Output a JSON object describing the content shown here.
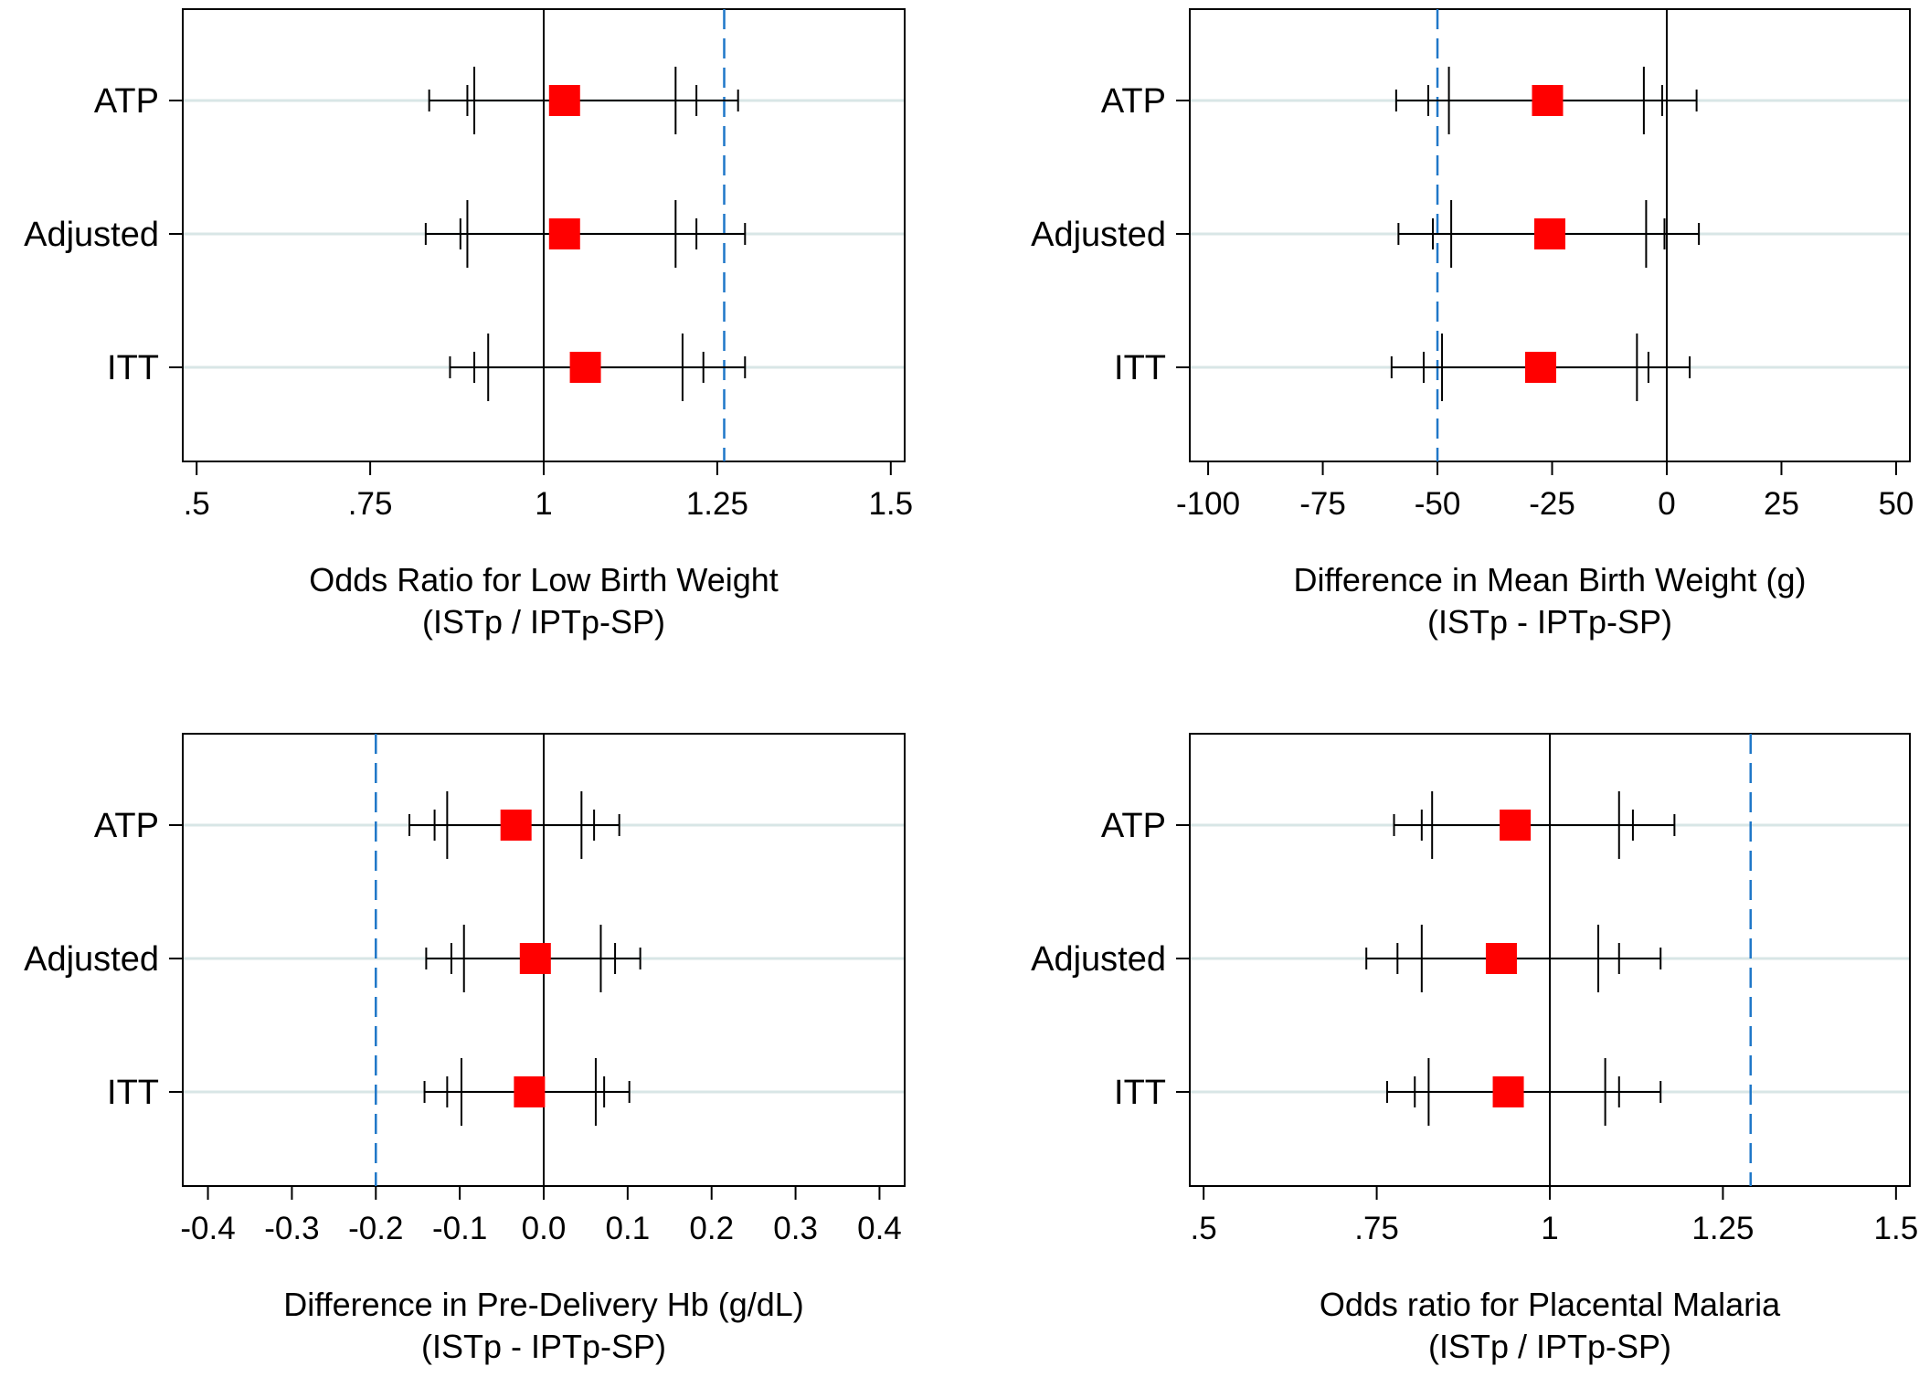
{
  "colors": {
    "marker": "#ff0000",
    "reference_line": "#1f77c8",
    "grid": "#d8e6e6",
    "ci_line": "#000000",
    "frame": "#000000"
  },
  "chart_data": [
    {
      "type": "forest",
      "xlabel": "Odds Ratio for Low Birth Weight",
      "xlabel_sub": "(ISTp / IPTp-SP)",
      "xlim": [
        0.48,
        1.52
      ],
      "ticks": [
        0.5,
        0.75,
        1,
        1.25,
        1.5
      ],
      "tick_labels": [
        ".5",
        ".75",
        "1",
        "1.25",
        "1.5"
      ],
      "null_line": 1,
      "margin_line": 1.26,
      "categories": [
        "ATP",
        "Adjusted",
        "ITT"
      ],
      "points": [
        {
          "label": "ATP",
          "estimate": 1.03,
          "ci90": [
            0.89,
            1.22
          ],
          "ci95": [
            0.835,
            1.28
          ],
          "ci85": [
            0.9,
            1.19
          ]
        },
        {
          "label": "Adjusted",
          "estimate": 1.03,
          "ci90": [
            0.88,
            1.22
          ],
          "ci95": [
            0.83,
            1.29
          ],
          "ci85": [
            0.89,
            1.19
          ]
        },
        {
          "label": "ITT",
          "estimate": 1.06,
          "ci90": [
            0.9,
            1.23
          ],
          "ci95": [
            0.865,
            1.29
          ],
          "ci85": [
            0.92,
            1.2
          ]
        }
      ]
    },
    {
      "type": "forest",
      "xlabel": "Difference in Mean Birth Weight (g)",
      "xlabel_sub": "(ISTp - IPTp-SP)",
      "xlim": [
        -104,
        53
      ],
      "ticks": [
        -100,
        -75,
        -50,
        -25,
        0,
        25,
        50
      ],
      "tick_labels": [
        "-100",
        "-75",
        "-50",
        "-25",
        "0",
        "25",
        "50"
      ],
      "null_line": 0,
      "margin_line": -50,
      "categories": [
        "ATP",
        "Adjusted",
        "ITT"
      ],
      "points": [
        {
          "label": "ATP",
          "estimate": -26,
          "ci90": [
            -52,
            -1
          ],
          "ci95": [
            -59,
            6.5
          ],
          "ci85": [
            -47.5,
            -5
          ]
        },
        {
          "label": "Adjusted",
          "estimate": -25.5,
          "ci90": [
            -51,
            -0.5
          ],
          "ci95": [
            -58.5,
            7
          ],
          "ci85": [
            -47,
            -4.5
          ]
        },
        {
          "label": "ITT",
          "estimate": -27.5,
          "ci90": [
            -53,
            -4
          ],
          "ci95": [
            -60,
            5
          ],
          "ci85": [
            -49,
            -6.5
          ]
        }
      ]
    },
    {
      "type": "forest",
      "xlabel": "Difference in Pre-Delivery Hb (g/dL)",
      "xlabel_sub": "(ISTp - IPTp-SP)",
      "xlim": [
        -0.43,
        0.43
      ],
      "ticks": [
        -0.4,
        -0.3,
        -0.2,
        -0.1,
        0.0,
        0.1,
        0.2,
        0.3,
        0.4
      ],
      "tick_labels": [
        "-0.4",
        "-0.3",
        "-0.2",
        "-0.1",
        "0.0",
        "0.1",
        "0.2",
        "0.3",
        "0.4"
      ],
      "null_line": 0,
      "margin_line": -0.2,
      "categories": [
        "ATP",
        "Adjusted",
        "ITT"
      ],
      "points": [
        {
          "label": "ATP",
          "estimate": -0.033,
          "ci90": [
            -0.13,
            0.06
          ],
          "ci95": [
            -0.16,
            0.09
          ],
          "ci85": [
            -0.115,
            0.045
          ]
        },
        {
          "label": "Adjusted",
          "estimate": -0.01,
          "ci90": [
            -0.11,
            0.085
          ],
          "ci95": [
            -0.14,
            0.115
          ],
          "ci85": [
            -0.095,
            0.068
          ]
        },
        {
          "label": "ITT",
          "estimate": -0.017,
          "ci90": [
            -0.115,
            0.072
          ],
          "ci95": [
            -0.142,
            0.102
          ],
          "ci85": [
            -0.098,
            0.062
          ]
        }
      ]
    },
    {
      "type": "forest",
      "xlabel": "Odds ratio for Placental Malaria",
      "xlabel_sub": "(ISTp / IPTp-SP)",
      "xlim": [
        0.48,
        1.52
      ],
      "ticks": [
        0.5,
        0.75,
        1,
        1.25,
        1.5
      ],
      "tick_labels": [
        ".5",
        ".75",
        "1",
        "1.25",
        "1.5"
      ],
      "null_line": 1,
      "margin_line": 1.29,
      "categories": [
        "ATP",
        "Adjusted",
        "ITT"
      ],
      "points": [
        {
          "label": "ATP",
          "estimate": 0.95,
          "ci90": [
            0.815,
            1.12
          ],
          "ci95": [
            0.775,
            1.18
          ],
          "ci85": [
            0.83,
            1.1
          ]
        },
        {
          "label": "Adjusted",
          "estimate": 0.93,
          "ci90": [
            0.78,
            1.1
          ],
          "ci95": [
            0.735,
            1.16
          ],
          "ci85": [
            0.815,
            1.07
          ]
        },
        {
          "label": "ITT",
          "estimate": 0.94,
          "ci90": [
            0.805,
            1.1
          ],
          "ci95": [
            0.765,
            1.16
          ],
          "ci85": [
            0.825,
            1.08
          ]
        }
      ]
    }
  ]
}
